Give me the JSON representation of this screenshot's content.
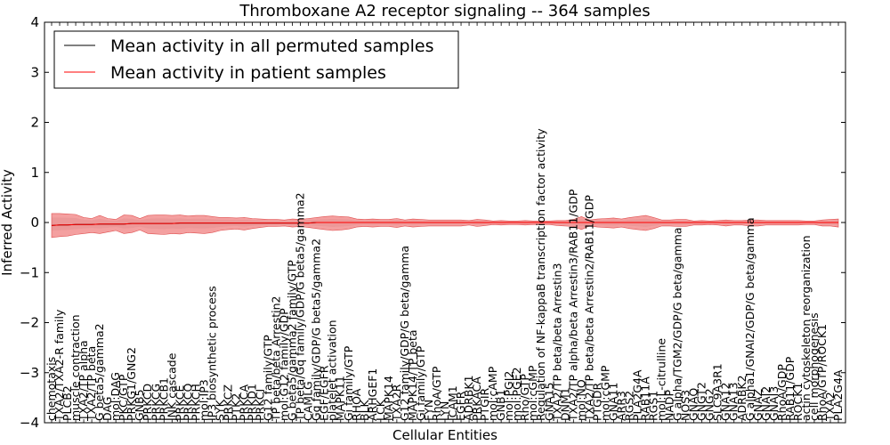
{
  "chart_data": {
    "type": "line",
    "title": "Thromboxane A2 receptor signaling -- 364 samples",
    "xlabel": "Cellular Entities",
    "ylabel": "Inferred Activity",
    "ylim": [
      -4,
      4
    ],
    "yticks": [
      "−4",
      "−3",
      "−2",
      "−1",
      "0",
      "1",
      "2",
      "3",
      "4"
    ],
    "legend_position": "top-left",
    "colors": {
      "permuted": "#000000",
      "patient": "#ff0000",
      "patient_band": "#f08080",
      "permuted_band": "#c8c8c8"
    },
    "x": [
      "chemotaxis",
      "TXA2/TXA2-R family",
      "PLCB2",
      "muscle contraction",
      "TXA2/TP alpha",
      "TXA2/TP beta",
      "G beta5/gamma2",
      "DAG",
      "mol:DAG",
      "PKC/GTP",
      "PRKG1/GNG2",
      "GNB5",
      "PRKCD",
      "PRKCG",
      "PRKCB1",
      "JNK cascade",
      "PRKCE",
      "PRKCQ",
      "PRKCH",
      "mol:IP3",
      "IP3 biosynthetic process",
      "SYK",
      "PRKCZ",
      "PTK2",
      "PRKCA",
      "PRKD1",
      "PRKCI",
      "G12 family/GTP",
      "TP beta/beta Arrestin2",
      "mol:G12 family/GDP",
      "G beta5/gamma2 family/GTP",
      "TP beta/Gq family/GDP/G beta5/gamma2",
      "CAMLG",
      "Gq family/GDP/G beta5/gamma2",
      "EGF/EGFR",
      "platelet activation",
      "MAPK11",
      "Gi family/GTP",
      "RHOA",
      "BLK",
      "ARHGEF1",
      "LCK",
      "MAPK14",
      "TXA2R",
      "G12 family/GDP/G beta/gamma",
      "MAPK14/TP beta",
      "Gi family/GTP",
      "FYN",
      "RhoA/GTP",
      "LYN",
      "ICAM1",
      "EGFR",
      "ADRBK1",
      "PRKACA",
      "PTGIR",
      "mol:cAMP",
      "GNB1",
      "mol:PGI2",
      "mol:PGE2",
      "Rho/GTP",
      "mol:cGMP",
      "Regulation of NF-kappaB transcription factor activity",
      "GNA15",
      "TXA2/TP beta/beta Arrestin3",
      "DNM1",
      "TXA2/TP alpha/beta Arrestin3/RAB11/GDP",
      "mol:NO",
      "TXA2/TP beta/beta Arrestin2/RAB11/GDP",
      "PTGDR",
      "mol:cGMP",
      "GNA11",
      "ARR3",
      "RGS2",
      "PLA2G4A",
      "RAB11A",
      "RGS1",
      "mol:L-citrulline",
      "NADP",
      "G alpha/TGM2/GDP/G beta/gamma",
      "NOS3",
      "GNAQ",
      "GNGT2",
      "GNG2",
      "SLC9A3R1",
      "GNA12",
      "GNA13",
      "ADRBK2",
      "G alpha1/GNAI2/GDP/G beta/gamma",
      "GNAZ",
      "GNAI2",
      "GNAI3",
      "RhoA/GDP",
      "RAB11/GDP",
      "ROCK1",
      "actin cytoskeleton reorganization",
      "cell morphogenesis",
      "RhoA/GTP/ROCK1",
      "TXA2",
      "PLA2G4A"
    ],
    "series": [
      {
        "name": "Mean activity in all permuted samples",
        "values": [
          -0.06,
          -0.05,
          -0.05,
          -0.04,
          -0.04,
          -0.04,
          -0.03,
          -0.03,
          -0.03,
          -0.03,
          -0.02,
          -0.02,
          -0.02,
          -0.02,
          -0.02,
          -0.02,
          -0.01,
          -0.01,
          -0.01,
          -0.01,
          -0.01,
          -0.01,
          -0.01,
          -0.01,
          -0.01,
          -0.01,
          -0.01,
          -0.01,
          -0.01,
          -0.01,
          -0.01,
          -0.01,
          -0.01,
          0.0,
          0.0,
          0.0,
          0.0,
          0.0,
          0.0,
          0.0,
          0.0,
          0.0,
          0.0,
          0.0,
          0.0,
          0.0,
          0.0,
          0.0,
          0.0,
          0.0,
          0.0,
          0.0,
          0.0,
          0.0,
          0.0,
          0.0,
          0.0,
          0.0,
          0.0,
          0.0,
          0.0,
          0.0,
          0.0,
          0.0,
          0.0,
          0.0,
          0.0,
          0.0,
          0.0,
          0.0,
          0.0,
          0.0,
          0.0,
          0.0,
          0.0,
          0.0,
          0.0,
          0.0,
          0.0,
          0.0,
          0.0,
          0.0,
          0.0,
          0.0,
          0.0,
          0.0,
          0.0,
          0.0,
          0.0,
          0.0,
          0.0,
          0.0,
          0.0,
          0.0,
          0.0,
          0.0,
          0.0,
          0.0,
          0.0
        ]
      },
      {
        "name": "Mean activity in patient samples",
        "values": [
          -0.06,
          -0.05,
          -0.05,
          -0.04,
          -0.04,
          -0.04,
          -0.03,
          -0.03,
          -0.03,
          -0.03,
          -0.02,
          -0.02,
          -0.02,
          -0.02,
          -0.02,
          -0.02,
          -0.01,
          -0.01,
          -0.01,
          -0.01,
          -0.01,
          -0.01,
          -0.01,
          -0.01,
          -0.01,
          -0.01,
          -0.01,
          -0.01,
          -0.01,
          -0.01,
          -0.01,
          -0.01,
          -0.01,
          0.0,
          0.0,
          0.0,
          0.0,
          0.0,
          0.0,
          0.0,
          0.0,
          0.0,
          0.0,
          0.0,
          0.0,
          0.0,
          0.0,
          0.0,
          0.0,
          0.0,
          0.0,
          0.0,
          0.0,
          0.0,
          0.0,
          0.0,
          0.0,
          0.0,
          0.0,
          0.0,
          0.0,
          0.0,
          0.0,
          0.0,
          0.0,
          0.0,
          0.0,
          0.0,
          0.0,
          0.0,
          0.0,
          0.0,
          0.0,
          0.0,
          0.0,
          0.0,
          0.0,
          0.0,
          0.0,
          0.0,
          0.0,
          0.0,
          0.0,
          0.0,
          0.0,
          0.0,
          0.0,
          0.0,
          0.0,
          0.0,
          0.0,
          0.0,
          0.0,
          0.0,
          0.0,
          0.0,
          0.0,
          0.0,
          0.0
        ]
      }
    ],
    "patient_band_upper": [
      0.18,
      0.18,
      0.17,
      0.16,
      0.1,
      0.08,
      0.14,
      0.08,
      0.06,
      0.15,
      0.14,
      0.08,
      0.14,
      0.15,
      0.15,
      0.14,
      0.15,
      0.13,
      0.14,
      0.14,
      0.12,
      0.1,
      0.1,
      0.09,
      0.1,
      0.08,
      0.07,
      0.06,
      0.06,
      0.05,
      0.07,
      0.06,
      0.08,
      0.1,
      0.12,
      0.13,
      0.12,
      0.11,
      0.07,
      0.06,
      0.07,
      0.06,
      0.06,
      0.08,
      0.05,
      0.07,
      0.06,
      0.05,
      0.05,
      0.05,
      0.05,
      0.05,
      0.04,
      0.06,
      0.05,
      0.03,
      0.04,
      0.03,
      0.03,
      0.04,
      0.03,
      0.03,
      0.03,
      0.04,
      0.04,
      0.06,
      0.12,
      0.05,
      0.07,
      0.08,
      0.09,
      0.07,
      0.1,
      0.12,
      0.14,
      0.1,
      0.05,
      0.05,
      0.06,
      0.06,
      0.03,
      0.04,
      0.03,
      0.04,
      0.05,
      0.04,
      0.04,
      0.05,
      0.05,
      0.04,
      0.04,
      0.04,
      0.04,
      0.04,
      0.03,
      0.03,
      0.05,
      0.06,
      0.07
    ],
    "patient_band_lower": [
      -0.3,
      -0.28,
      -0.27,
      -0.24,
      -0.22,
      -0.2,
      -0.22,
      -0.19,
      -0.16,
      -0.22,
      -0.2,
      -0.15,
      -0.22,
      -0.23,
      -0.24,
      -0.22,
      -0.23,
      -0.2,
      -0.21,
      -0.22,
      -0.2,
      -0.16,
      -0.14,
      -0.13,
      -0.15,
      -0.12,
      -0.1,
      -0.08,
      -0.08,
      -0.07,
      -0.09,
      -0.08,
      -0.1,
      -0.12,
      -0.14,
      -0.16,
      -0.15,
      -0.13,
      -0.09,
      -0.08,
      -0.09,
      -0.08,
      -0.08,
      -0.1,
      -0.07,
      -0.09,
      -0.08,
      -0.07,
      -0.07,
      -0.07,
      -0.07,
      -0.07,
      -0.05,
      -0.08,
      -0.06,
      -0.04,
      -0.05,
      -0.04,
      -0.04,
      -0.05,
      -0.04,
      -0.04,
      -0.04,
      -0.06,
      -0.07,
      -0.08,
      -0.14,
      -0.07,
      -0.09,
      -0.1,
      -0.11,
      -0.09,
      -0.12,
      -0.14,
      -0.16,
      -0.12,
      -0.07,
      -0.07,
      -0.08,
      -0.08,
      -0.05,
      -0.05,
      -0.04,
      -0.05,
      -0.07,
      -0.05,
      -0.05,
      -0.07,
      -0.07,
      -0.05,
      -0.05,
      -0.05,
      -0.05,
      -0.05,
      -0.04,
      -0.04,
      -0.07,
      -0.07,
      -0.09
    ]
  }
}
